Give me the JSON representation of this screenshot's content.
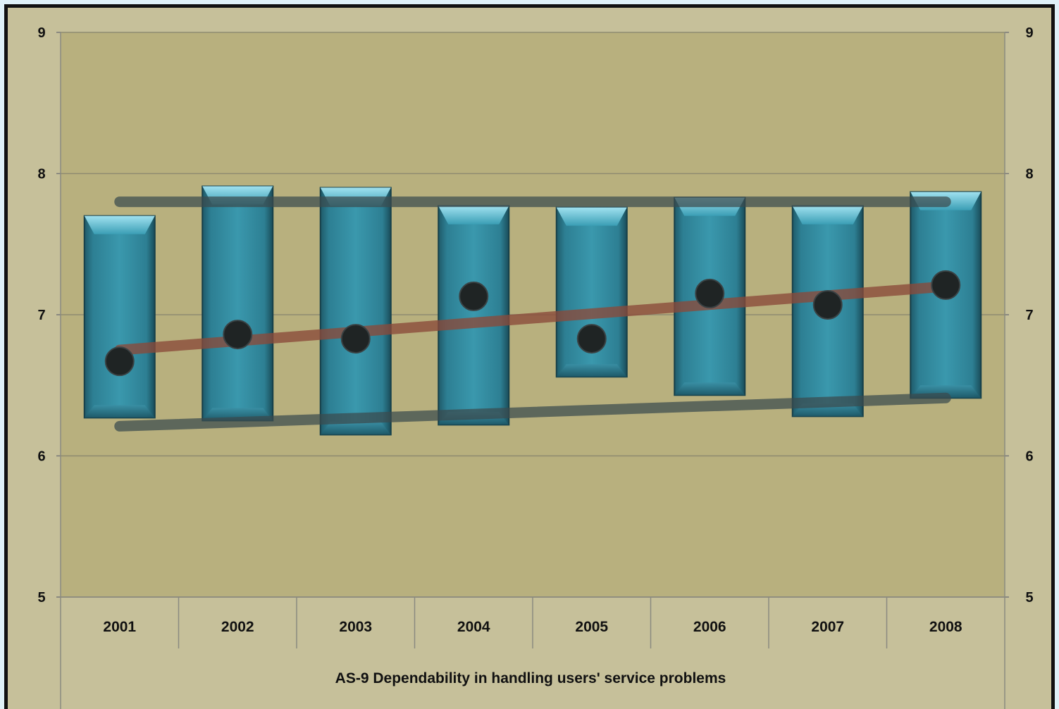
{
  "chart_data": {
    "type": "bar",
    "xlabel": "AS-9 Dependability in handling users' service problems",
    "categories": [
      "2001",
      "2002",
      "2003",
      "2004",
      "2005",
      "2006",
      "2007",
      "2008"
    ],
    "ylim": [
      5,
      9
    ],
    "yticks": [
      5,
      6,
      7,
      8,
      9
    ],
    "right_yticks": [
      5,
      6,
      7,
      8,
      9
    ],
    "series": [
      {
        "role": "range",
        "low": [
          6.27,
          6.25,
          6.15,
          6.22,
          6.56,
          6.43,
          6.28,
          6.41
        ],
        "high": [
          7.7,
          7.91,
          7.9,
          7.77,
          7.76,
          7.83,
          7.77,
          7.87
        ]
      },
      {
        "role": "mean",
        "values": [
          6.67,
          6.86,
          6.83,
          7.13,
          6.83,
          7.15,
          7.07,
          7.21
        ]
      }
    ],
    "trend": {
      "start": 6.75,
      "end": 7.2
    },
    "upper_band": {
      "start": 7.8,
      "end": 7.8
    },
    "lower_band": {
      "start": 6.21,
      "end": 6.41
    },
    "grid": true,
    "legend": "none",
    "colors": {
      "plot_bg": "#b8b07e",
      "outer_bg": "#c6c09a",
      "bar": "#3a93a8",
      "bar_cap": "#7fd4e8",
      "trend": "#8b4a3a",
      "band": "#3b4b4e",
      "marker": "#1f2424"
    }
  }
}
